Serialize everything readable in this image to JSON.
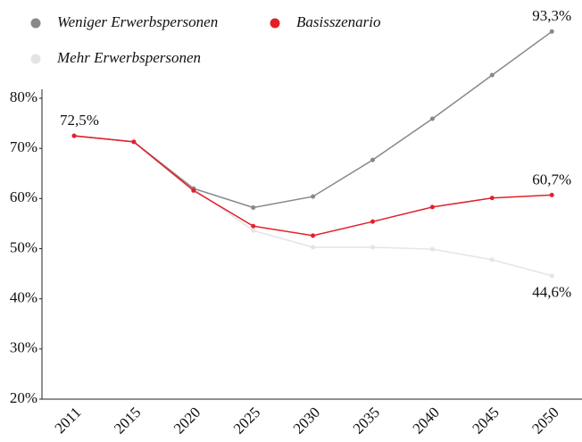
{
  "chart_data": {
    "type": "line",
    "categories": [
      "2011",
      "2015",
      "2020",
      "2025",
      "2030",
      "2035",
      "2040",
      "2045",
      "2050"
    ],
    "series": [
      {
        "name": "Weniger Erwerbspersonen",
        "color": "#888888",
        "values": [
          72.5,
          71.3,
          62.0,
          58.2,
          60.4,
          67.7,
          75.9,
          84.6,
          93.3
        ],
        "value_labels": [
          null,
          null,
          null,
          null,
          null,
          null,
          null,
          null,
          "93,3%"
        ]
      },
      {
        "name": "Basisszenario",
        "color": "#e3202a",
        "values": [
          72.5,
          71.3,
          61.6,
          54.5,
          52.6,
          55.4,
          58.3,
          60.1,
          60.7
        ],
        "value_labels": [
          "72,5%",
          null,
          null,
          null,
          null,
          null,
          null,
          null,
          "60,7%"
        ]
      },
      {
        "name": "Mehr Erwerbspersonen",
        "color": "#e4e4e4",
        "values": [
          72.5,
          71.3,
          62.0,
          53.6,
          50.3,
          50.3,
          49.9,
          47.8,
          44.6
        ],
        "value_labels": [
          null,
          null,
          null,
          null,
          null,
          null,
          null,
          null,
          "44,6%"
        ]
      }
    ],
    "ylim": [
      20,
      80
    ],
    "yticks": [
      {
        "value": 20,
        "label": "20%"
      },
      {
        "value": 30,
        "label": "30%"
      },
      {
        "value": 40,
        "label": "40%"
      },
      {
        "value": 50,
        "label": "50%"
      },
      {
        "value": 60,
        "label": "60%"
      },
      {
        "value": 70,
        "label": "70%"
      },
      {
        "value": 80,
        "label": "80%"
      }
    ],
    "legend": "top-left"
  }
}
